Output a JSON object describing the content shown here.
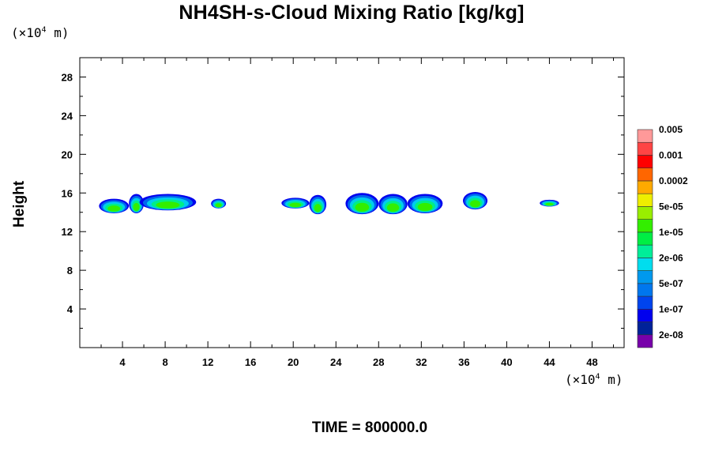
{
  "chart_data": {
    "type": "heatmap",
    "title": "NH4SH-s-Cloud Mixing Ratio [kg/kg]",
    "ylabel": "Height",
    "xlabel": "",
    "x_unit": "(×10",
    "x_unit_exp": "4",
    "x_unit_tail": " m)",
    "y_unit": "(×10",
    "y_unit_exp": "4",
    "y_unit_tail": " m)",
    "xlim": [
      0,
      51
    ],
    "ylim": [
      0,
      30
    ],
    "x_ticks": [
      4,
      8,
      12,
      16,
      20,
      24,
      28,
      32,
      36,
      40,
      44,
      48
    ],
    "y_ticks": [
      4,
      8,
      12,
      16,
      20,
      24,
      28
    ],
    "x_tick_labels": [
      "4",
      "8",
      "12",
      "16",
      "20",
      "24",
      "28",
      "32",
      "36",
      "40",
      "44",
      "48"
    ],
    "y_tick_labels": [
      "4",
      "8",
      "12",
      "16",
      "20",
      "24",
      "28"
    ],
    "time_label": "TIME = 800000.0",
    "colorbar": {
      "colors": [
        "#7700aa",
        "#002299",
        "#0000ee",
        "#0044ee",
        "#0077ee",
        "#0099ee",
        "#00ddee",
        "#00ee99",
        "#00ee44",
        "#33ee00",
        "#99ee00",
        "#eeee00",
        "#ffaa00",
        "#ff6600",
        "#ff0000",
        "#ff4444",
        "#ff9999"
      ],
      "labels": [
        "2e-08",
        "1e-07",
        "5e-07",
        "2e-06",
        "1e-05",
        "5e-05",
        "0.0002",
        "0.001",
        "0.005"
      ]
    },
    "clouds": [
      {
        "x0": 1.8,
        "x1": 4.6,
        "y0": 13.9,
        "y1": 15.4
      },
      {
        "x0": 4.6,
        "x1": 6.0,
        "y0": 13.9,
        "y1": 15.9
      },
      {
        "x0": 5.6,
        "x1": 10.9,
        "y0": 14.2,
        "y1": 15.9
      },
      {
        "x0": 12.3,
        "x1": 13.7,
        "y0": 14.4,
        "y1": 15.4
      },
      {
        "x0": 18.9,
        "x1": 21.5,
        "y0": 14.4,
        "y1": 15.5
      },
      {
        "x0": 21.5,
        "x1": 23.1,
        "y0": 13.8,
        "y1": 15.8
      },
      {
        "x0": 24.9,
        "x1": 28.0,
        "y0": 13.8,
        "y1": 16.0
      },
      {
        "x0": 28.0,
        "x1": 30.7,
        "y0": 13.8,
        "y1": 15.9
      },
      {
        "x0": 30.7,
        "x1": 34.0,
        "y0": 13.9,
        "y1": 15.9
      },
      {
        "x0": 35.9,
        "x1": 38.2,
        "y0": 14.3,
        "y1": 16.1
      },
      {
        "x0": 43.1,
        "x1": 44.9,
        "y0": 14.6,
        "y1": 15.3
      }
    ]
  }
}
